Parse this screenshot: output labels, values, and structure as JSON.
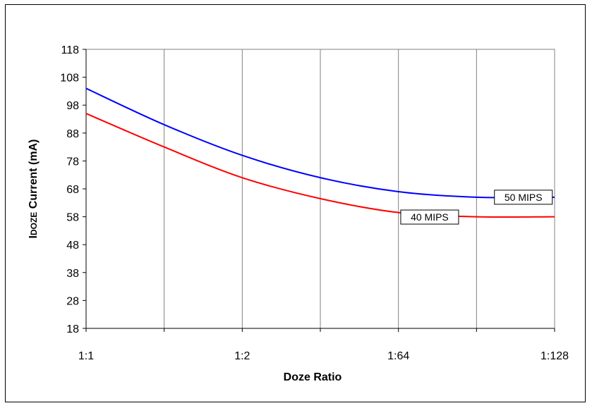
{
  "chart_data": {
    "type": "line",
    "title": "",
    "xlabel": "Doze Ratio",
    "ylabel_main": "I",
    "ylabel_sub": "DOZE",
    "ylabel_rest": " Current  (mA)",
    "x_tick_labels": [
      "1:1",
      "1:2",
      "1:64",
      "1:128"
    ],
    "y_ticks": [
      18,
      28,
      38,
      48,
      58,
      68,
      78,
      88,
      98,
      108,
      118
    ],
    "ylim": [
      18,
      118
    ],
    "xlim": [
      0,
      6
    ],
    "grid": "vertical",
    "series": [
      {
        "name": "50 MIPS",
        "color": "#0000ff",
        "x": [
          0,
          1,
          2,
          3,
          4,
          5,
          6
        ],
        "y": [
          104,
          91,
          80,
          72,
          67,
          65,
          65
        ]
      },
      {
        "name": "40 MIPS",
        "color": "#ff0000",
        "x": [
          0,
          1,
          2,
          3,
          4,
          5,
          6
        ],
        "y": [
          95,
          83,
          72,
          64.5,
          59.5,
          58,
          58
        ]
      }
    ]
  }
}
